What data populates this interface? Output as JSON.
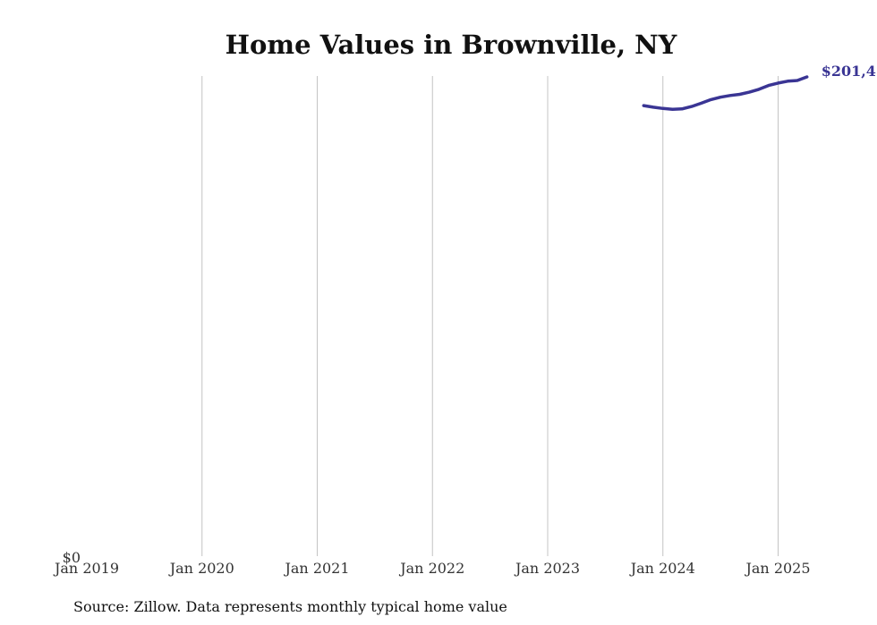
{
  "chart_data": {
    "type": "line",
    "title": "Home Values in Brownville, NY",
    "xlabel": "",
    "ylabel": "",
    "x_ticks": [
      "Jan 2019",
      "Jan 2020",
      "Jan 2021",
      "Jan 2022",
      "Jan 2023",
      "Jan 2024",
      "Jan 2025"
    ],
    "y_ticks": [
      "$0"
    ],
    "ylim": [
      0,
      201400
    ],
    "grid": "vertical",
    "series": [
      {
        "color": "#3a3594",
        "end_label": "$201,4",
        "x": [
          "2023-11",
          "2023-12",
          "2024-01",
          "2024-02",
          "2024-03",
          "2024-04",
          "2024-05",
          "2024-06",
          "2024-07",
          "2024-08",
          "2024-09",
          "2024-10",
          "2024-11",
          "2024-12",
          "2025-01",
          "2025-02",
          "2025-03",
          "2025-04"
        ],
        "values": [
          189400,
          188700,
          188200,
          187800,
          188000,
          189000,
          190400,
          191900,
          192900,
          193600,
          194100,
          195000,
          196200,
          197800,
          198800,
          199600,
          199900,
          201400
        ]
      }
    ]
  },
  "source": "Source: Zillow. Data represents monthly typical home value"
}
